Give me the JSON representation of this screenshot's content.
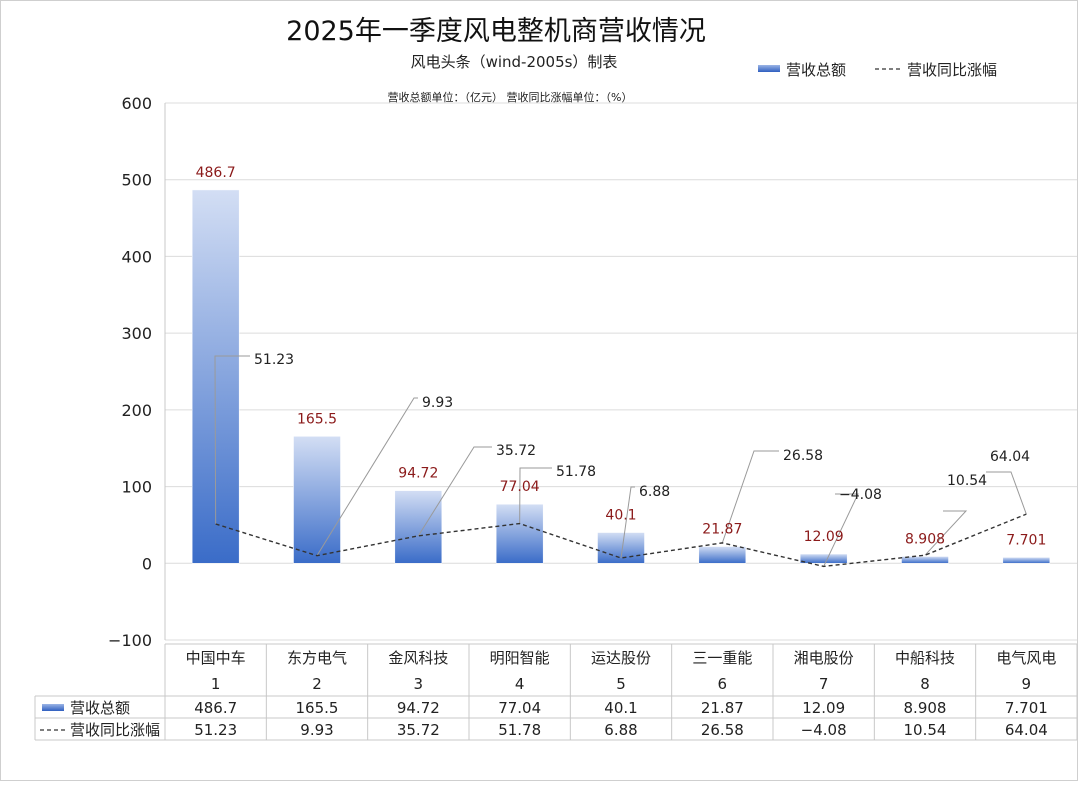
{
  "chart_data": {
    "type": "bar",
    "title": "2025年一季度风电整机商营收情况",
    "subtitle": "风电头条（wind-2005s）制表",
    "unit_note": "营收总额单位：（亿元） 营收同比涨幅单位：（%）",
    "categories": [
      "中国中车",
      "东方电气",
      "金风科技",
      "明阳智能",
      "运达股份",
      "三一重能",
      "湘电股份",
      "中船科技",
      "电气风电"
    ],
    "indices": [
      "1",
      "2",
      "3",
      "4",
      "5",
      "6",
      "7",
      "8",
      "9"
    ],
    "series": [
      {
        "name": "营收总额",
        "type": "bar",
        "values": [
          486.7,
          165.5,
          94.72,
          77.04,
          40.1,
          21.87,
          12.09,
          8.908,
          7.701
        ],
        "labels": [
          "486.7",
          "165.5",
          "94.72",
          "77.04",
          "40.1",
          "21.87",
          "12.09",
          "8.908",
          "7.701"
        ],
        "color": "#3a6cc8"
      },
      {
        "name": "营收同比涨幅",
        "type": "line",
        "style": "dashed",
        "values": [
          51.23,
          9.93,
          35.72,
          51.78,
          6.88,
          26.58,
          -4.08,
          10.54,
          64.04
        ],
        "labels": [
          "51.23",
          "9.93",
          "35.72",
          "51.78",
          "6.88",
          "26.58",
          "−4.08",
          "10.54",
          "64.04"
        ],
        "color": "#333333"
      }
    ],
    "ylim": [
      -100,
      600
    ],
    "yticks": [
      -100,
      0,
      100,
      200,
      300,
      400,
      500,
      600
    ],
    "ytick_labels": [
      "−100",
      "0",
      "100",
      "200",
      "300",
      "400",
      "500",
      "600"
    ],
    "grid": true,
    "legend_position": "top-right",
    "data_table": true
  }
}
